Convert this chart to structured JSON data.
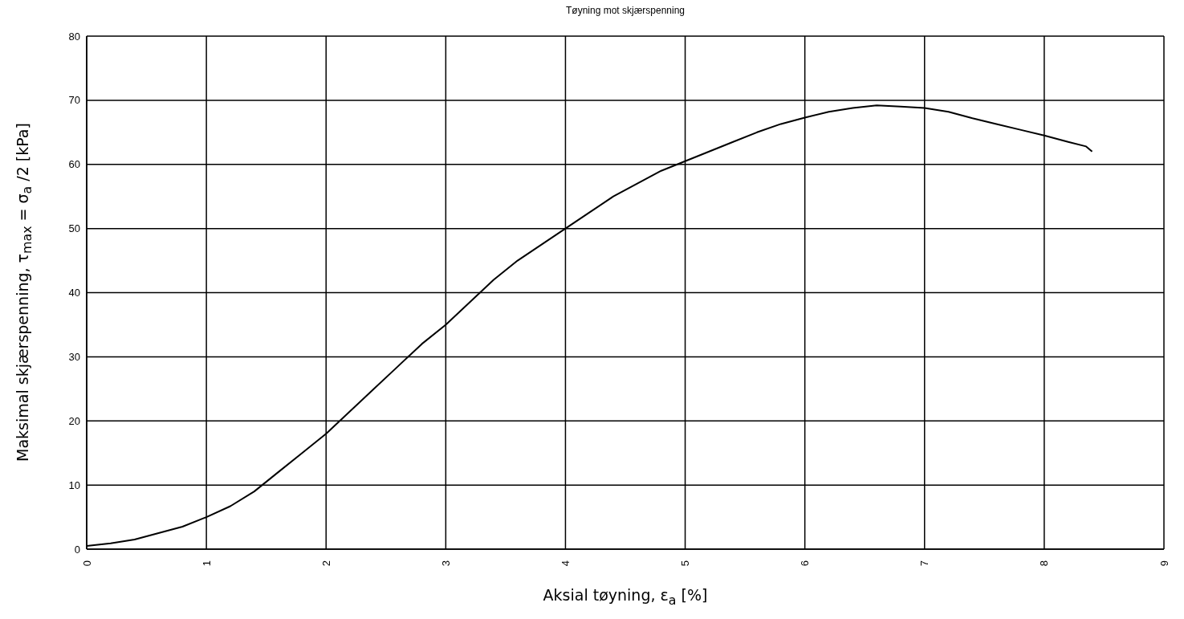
{
  "chart_data": {
    "type": "line",
    "title": "Tøyning mot skjærspenning",
    "xlabel": "Aksial tøyning, ε$_{a}$ [%]",
    "ylabel": "Maksimal skjærspenning, τ$_{max}$ = σ$_{a}$ /2  [kPa]",
    "x": [
      0,
      0.2,
      0.4,
      0.6,
      0.8,
      1,
      1.2,
      1.4,
      1.6,
      1.8,
      2,
      2.2,
      2.4,
      2.6,
      2.8,
      3,
      3.2,
      3.4,
      3.6,
      3.8,
      4,
      4.2,
      4.4,
      4.6,
      4.8,
      5,
      5.2,
      5.4,
      5.6,
      5.8,
      6,
      6.2,
      6.4,
      6.6,
      6.8,
      7,
      7.2,
      7.4,
      7.6,
      7.8,
      8,
      8.2,
      8.35,
      8.4
    ],
    "series": [
      {
        "color": "#000000",
        "values": [
          0.5,
          0.9,
          1.5,
          2.5,
          3.5,
          5,
          6.7,
          9,
          12,
          15,
          18,
          21.5,
          25,
          28.5,
          32,
          35,
          38.5,
          42,
          45,
          47.5,
          50,
          52.5,
          55,
          57,
          59,
          60.5,
          62,
          63.5,
          65,
          66.3,
          67.3,
          68.2,
          68.8,
          69.2,
          69,
          68.8,
          68.2,
          67.2,
          66.3,
          65.4,
          64.5,
          63.5,
          62.8,
          62
        ]
      }
    ],
    "xlim": [
      0,
      9
    ],
    "xticks": [
      0,
      1,
      2,
      3,
      4,
      5,
      6,
      7,
      8,
      9
    ],
    "ylim": [
      0,
      80
    ],
    "yticks": [
      0,
      10,
      20,
      30,
      40,
      50,
      60,
      70,
      80
    ],
    "grid": true,
    "marker": "none",
    "line_style": "solid"
  }
}
